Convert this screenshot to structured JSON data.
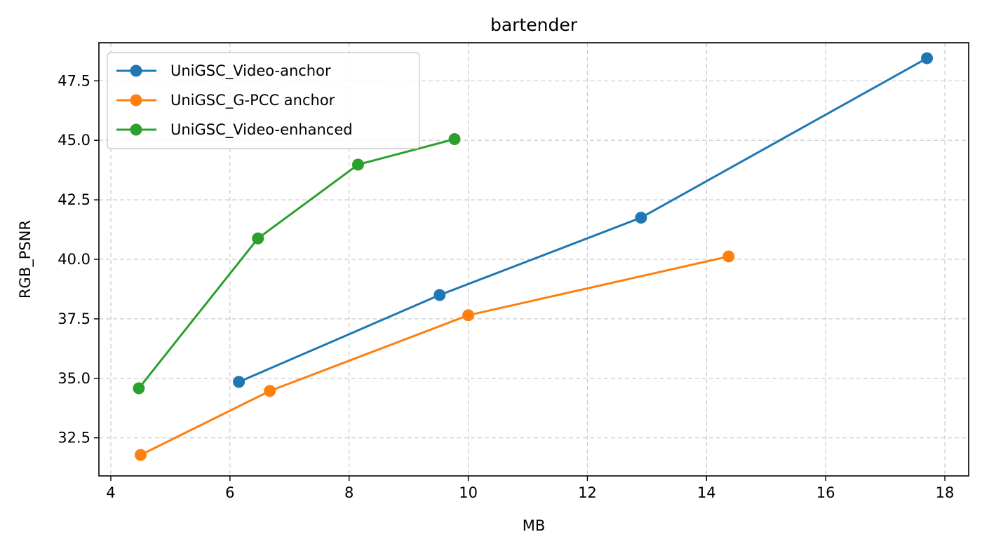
{
  "chart_data": {
    "type": "line",
    "title": "bartender",
    "xlabel": "MB",
    "ylabel": "RGB_PSNR",
    "xlim": [
      3.8,
      18.4
    ],
    "ylim": [
      30.9,
      49.1
    ],
    "xticks": [
      4,
      6,
      8,
      10,
      12,
      14,
      16,
      18
    ],
    "xtick_labels": [
      "4",
      "6",
      "8",
      "10",
      "12",
      "14",
      "16",
      "18"
    ],
    "yticks": [
      32.5,
      35.0,
      37.5,
      40.0,
      42.5,
      45.0,
      47.5
    ],
    "ytick_labels": [
      "32.5",
      "35.0",
      "37.5",
      "40.0",
      "42.5",
      "45.0",
      "47.5"
    ],
    "grid": true,
    "legend_position": "upper left",
    "series": [
      {
        "name": "UniGSC_Video-anchor",
        "color": "#1f77b4",
        "x": [
          6.15,
          9.52,
          12.9,
          17.7
        ],
        "y": [
          34.85,
          38.5,
          41.75,
          48.45
        ]
      },
      {
        "name": "UniGSC_G-PCC anchor",
        "color": "#ff7f0e",
        "x": [
          4.5,
          6.67,
          10.0,
          14.37
        ],
        "y": [
          31.78,
          34.47,
          37.65,
          40.12
        ]
      },
      {
        "name": "UniGSC_Video-enhanced",
        "color": "#2ca02c",
        "x": [
          4.47,
          6.47,
          8.15,
          9.77
        ],
        "y": [
          34.58,
          40.88,
          43.98,
          45.05
        ]
      }
    ]
  }
}
